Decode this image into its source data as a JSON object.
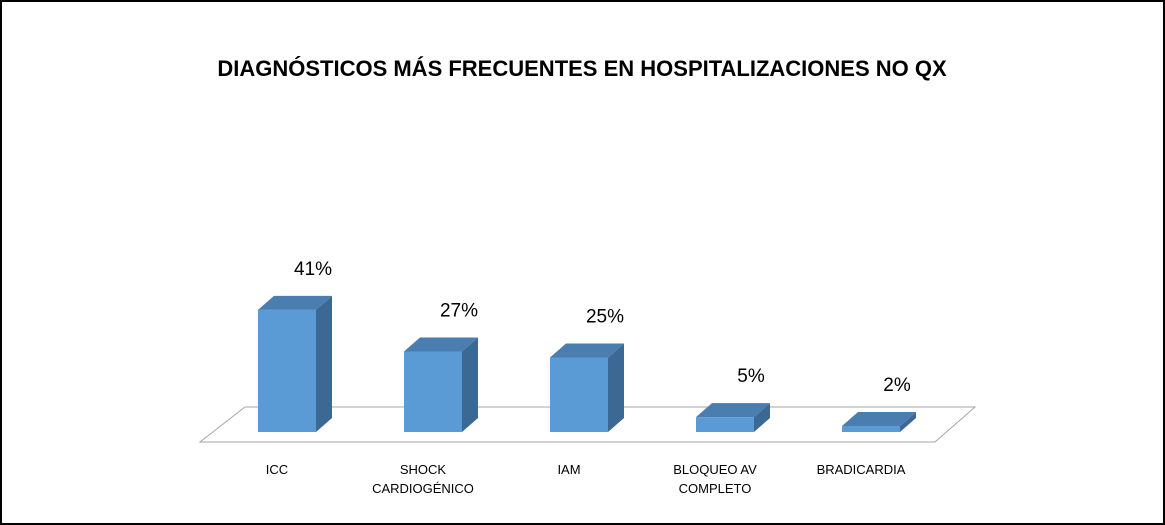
{
  "chart_data": {
    "type": "bar3d",
    "title": "DIAGNÓSTICOS MÁS FRECUENTES EN HOSPITALIZACIONES NO QX",
    "categories": [
      "ICC",
      "SHOCK CARDIOGÉNICO",
      "IAM",
      "BLOQUEO AV COMPLETO",
      "BRADICARDIA"
    ],
    "values": [
      41,
      27,
      25,
      5,
      2
    ],
    "value_labels": [
      "41%",
      "27%",
      "25%",
      "5%",
      "2%"
    ],
    "color": "#5b9bd5"
  }
}
